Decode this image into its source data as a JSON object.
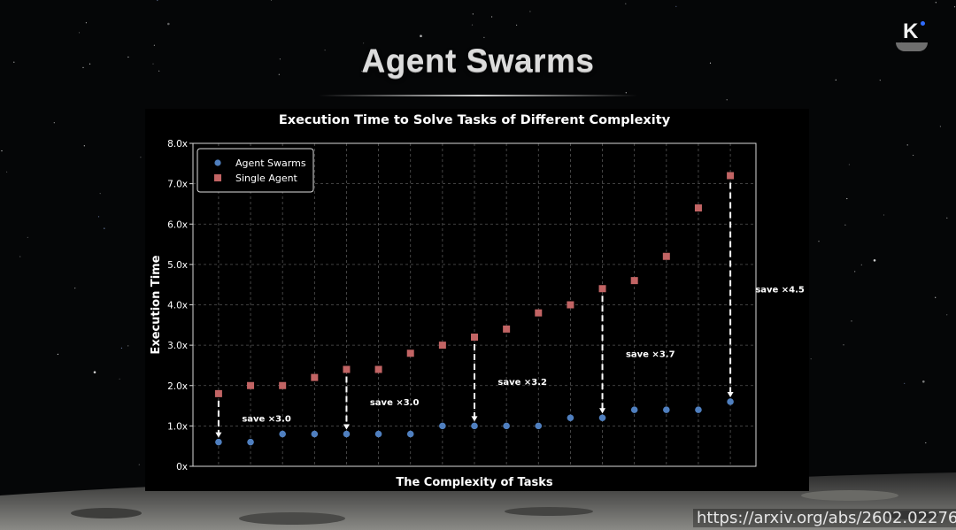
{
  "slide": {
    "title": "Agent Swarms",
    "logo_letter": "K",
    "url": "https://arxiv.org/abs/2602.02276"
  },
  "colors": {
    "background": "#050607",
    "swarm": "#4f7fbf",
    "single": "#c26464",
    "grid": "#555555",
    "text": "#ffffff"
  },
  "chart_data": {
    "type": "scatter",
    "title": "Execution Time to Solve Tasks of Different Complexity",
    "xlabel": "The Complexity of Tasks",
    "ylabel": "Execution Time",
    "ylim": [
      0,
      8
    ],
    "yticks": [
      "0x",
      "1.0x",
      "2.0x",
      "3.0x",
      "4.0x",
      "5.0x",
      "6.0x",
      "7.0x",
      "8.0x"
    ],
    "x": [
      1,
      2,
      3,
      4,
      5,
      6,
      7,
      8,
      9,
      10,
      11,
      12,
      13,
      14,
      15,
      16,
      17
    ],
    "xlim": [
      0.2,
      17.8
    ],
    "grid": true,
    "legend_position": "top-left",
    "series": [
      {
        "name": "Agent Swarms",
        "marker": "circle",
        "values": [
          0.6,
          0.6,
          0.8,
          0.8,
          0.8,
          0.8,
          0.8,
          1.0,
          1.0,
          1.0,
          1.0,
          1.2,
          1.2,
          1.4,
          1.4,
          1.4,
          1.6
        ]
      },
      {
        "name": "Single Agent",
        "marker": "square",
        "values": [
          1.8,
          2.0,
          2.0,
          2.2,
          2.4,
          2.4,
          2.8,
          3.0,
          3.2,
          3.4,
          3.8,
          4.0,
          4.4,
          4.6,
          5.2,
          6.4,
          7.2
        ]
      }
    ],
    "annotations": [
      {
        "x": 1,
        "from": 1.8,
        "to": 0.6,
        "label": "save ×3.0",
        "label_x": 2.5,
        "label_y": 1.2
      },
      {
        "x": 5,
        "from": 2.4,
        "to": 0.8,
        "label": "save ×3.0",
        "label_x": 6.5,
        "label_y": 1.6
      },
      {
        "x": 9,
        "from": 3.2,
        "to": 1.0,
        "label": "save ×3.2",
        "label_x": 10.5,
        "label_y": 2.1
      },
      {
        "x": 13,
        "from": 4.4,
        "to": 1.2,
        "label": "save ×3.7",
        "label_x": 14.5,
        "label_y": 2.8
      },
      {
        "x": 17,
        "from": 7.2,
        "to": 1.6,
        "label": "save ×4.5",
        "label_x": 18.55,
        "label_y": 4.4
      }
    ]
  }
}
